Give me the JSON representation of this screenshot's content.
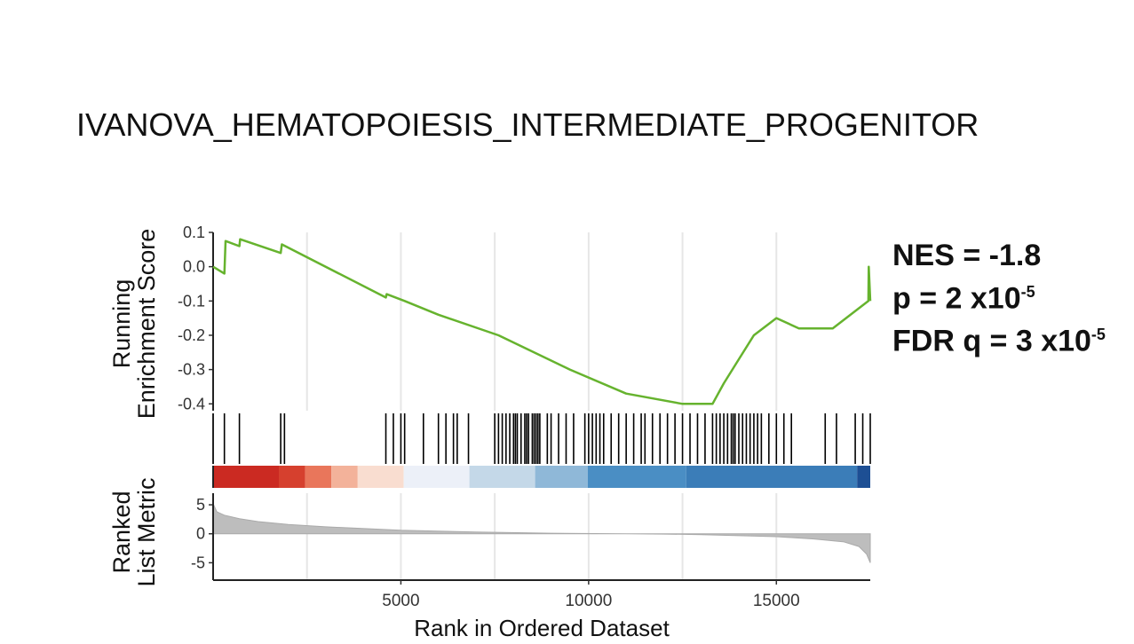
{
  "title": "IVANOVA_HEMATOPOIESIS_INTERMEDIATE_PROGENITOR",
  "stats": {
    "nes": "NES = -1.8",
    "p_prefix": "p = 2 x10",
    "p_exp": "-5",
    "fdr_prefix": "FDR q = 3 x10",
    "fdr_exp": "-5"
  },
  "chart_data": [
    {
      "type": "line",
      "panel": "running-enrichment-score",
      "ylabel_line1": "Running",
      "ylabel_line2": "Enrichment Score",
      "ylim": [
        -0.42,
        0.1
      ],
      "xlim": [
        0,
        17500
      ],
      "yticks": [
        0.1,
        0.0,
        -0.1,
        -0.2,
        -0.3,
        -0.4
      ],
      "ytick_labels": [
        "0.1",
        "0.0",
        "-0.1",
        "-0.2",
        "-0.3",
        "-0.4"
      ],
      "line_color": "#66b32e",
      "x": [
        0,
        300,
        330,
        700,
        720,
        1800,
        1830,
        4600,
        4620,
        5100,
        6000,
        7600,
        9500,
        11000,
        12500,
        13300,
        13600,
        14000,
        14400,
        15000,
        15600,
        16500,
        17450,
        17460,
        17500
      ],
      "y": [
        0.0,
        -0.02,
        0.075,
        0.06,
        0.08,
        0.04,
        0.065,
        -0.09,
        -0.08,
        -0.1,
        -0.14,
        -0.2,
        -0.3,
        -0.37,
        -0.4,
        -0.4,
        -0.34,
        -0.27,
        -0.2,
        -0.15,
        -0.18,
        -0.18,
        -0.1,
        0.0,
        -0.1
      ]
    },
    {
      "type": "barcode",
      "panel": "gene-hits",
      "hits": [
        300,
        700,
        1800,
        1900,
        4600,
        4800,
        5000,
        5100,
        5600,
        6000,
        6200,
        6400,
        6500,
        6800,
        7500,
        7600,
        7700,
        7800,
        7900,
        8000,
        8050,
        8100,
        8200,
        8300,
        8350,
        8400,
        8500,
        8550,
        8600,
        8650,
        8700,
        8900,
        9000,
        9200,
        9400,
        9600,
        9900,
        10000,
        10100,
        10200,
        10300,
        10400,
        10600,
        10800,
        11000,
        11200,
        11400,
        11500,
        11700,
        11900,
        12100,
        12300,
        12500,
        12700,
        12900,
        13100,
        13300,
        13400,
        13500,
        13600,
        13700,
        13800,
        13850,
        13900,
        14000,
        14100,
        14200,
        14300,
        14400,
        14500,
        14600,
        14800,
        15000,
        15200,
        15400,
        16300,
        16600,
        17100,
        17300,
        17500
      ]
    },
    {
      "type": "area",
      "panel": "ranked-list-metric",
      "ylabel_line1": "Ranked",
      "ylabel_line2": "List Metric",
      "xlabel": "Rank in Ordered Dataset",
      "xlim": [
        0,
        17500
      ],
      "ylim": [
        -8,
        7
      ],
      "yticks": [
        5,
        0,
        -5
      ],
      "ytick_labels": [
        "5",
        "0",
        "-5"
      ],
      "xticks": [
        5000,
        10000,
        15000
      ],
      "xtick_labels": [
        "5000",
        "10000",
        "15000"
      ],
      "fill_color": "#bdbdbd",
      "x": [
        0,
        100,
        300,
        700,
        1200,
        2000,
        3000,
        5000,
        7000,
        9000,
        11000,
        12000,
        13000,
        15000,
        16000,
        16800,
        17200,
        17400,
        17500
      ],
      "y": [
        5.2,
        3.8,
        3.2,
        2.6,
        2.1,
        1.6,
        1.2,
        0.6,
        0.3,
        0.1,
        0.0,
        -0.05,
        -0.15,
        -0.5,
        -0.9,
        -1.4,
        -2.2,
        -3.5,
        -5.0
      ]
    }
  ],
  "gradient_colors": [
    "#cb2a22",
    "#d6402e",
    "#e9765b",
    "#f3b29a",
    "#f9ddd0",
    "#ecf0f8",
    "#c4d8e8",
    "#8fb8d8",
    "#4a8ec4",
    "#3b7db8",
    "#1d4f94"
  ]
}
